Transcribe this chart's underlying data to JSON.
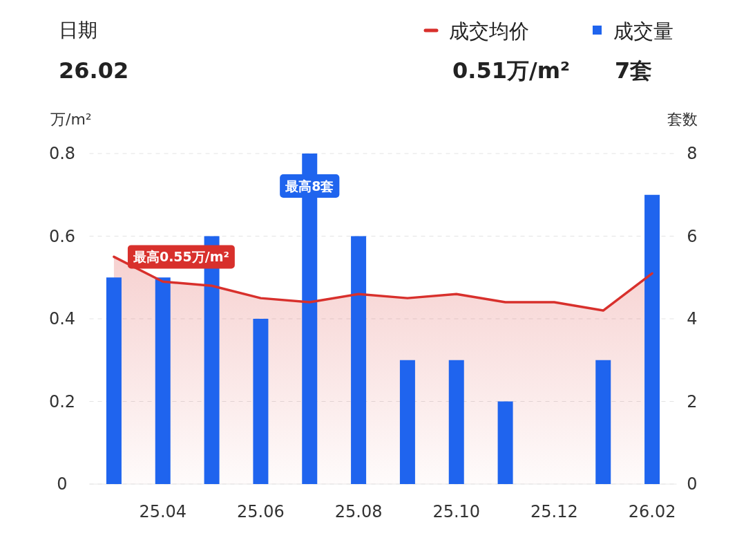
{
  "chart_data": {
    "type": "bar",
    "categories": [
      null,
      "25.04",
      null,
      "25.06",
      null,
      "25.08",
      null,
      "25.10",
      null,
      "25.12",
      null,
      "26.02"
    ],
    "series": [
      {
        "name": "成交均价",
        "type": "area",
        "color": "#d8302c",
        "values": [
          0.55,
          0.49,
          0.48,
          0.45,
          0.44,
          0.46,
          0.45,
          0.46,
          0.44,
          0.44,
          0.42,
          0.51
        ]
      },
      {
        "name": "成交量",
        "axis": "y2",
        "color": "#1f64ee",
        "values": [
          5,
          5,
          6,
          4,
          8,
          6,
          3,
          3,
          2,
          0,
          3,
          7
        ]
      }
    ],
    "ylabel": "万/m²",
    "y2label": "套数",
    "ylim": [
      0,
      0.8
    ],
    "yticks": [
      0,
      0.2,
      0.4,
      0.6,
      0.8
    ],
    "y2lim": [
      0,
      8
    ],
    "y2ticks": [
      0,
      2,
      4,
      6,
      8
    ],
    "grid": "y",
    "legend": "top right",
    "annotations": [
      "日期",
      "26.02",
      "0.51万/m²",
      "7套",
      "最高0.55万/m²",
      "最高8套"
    ]
  }
}
